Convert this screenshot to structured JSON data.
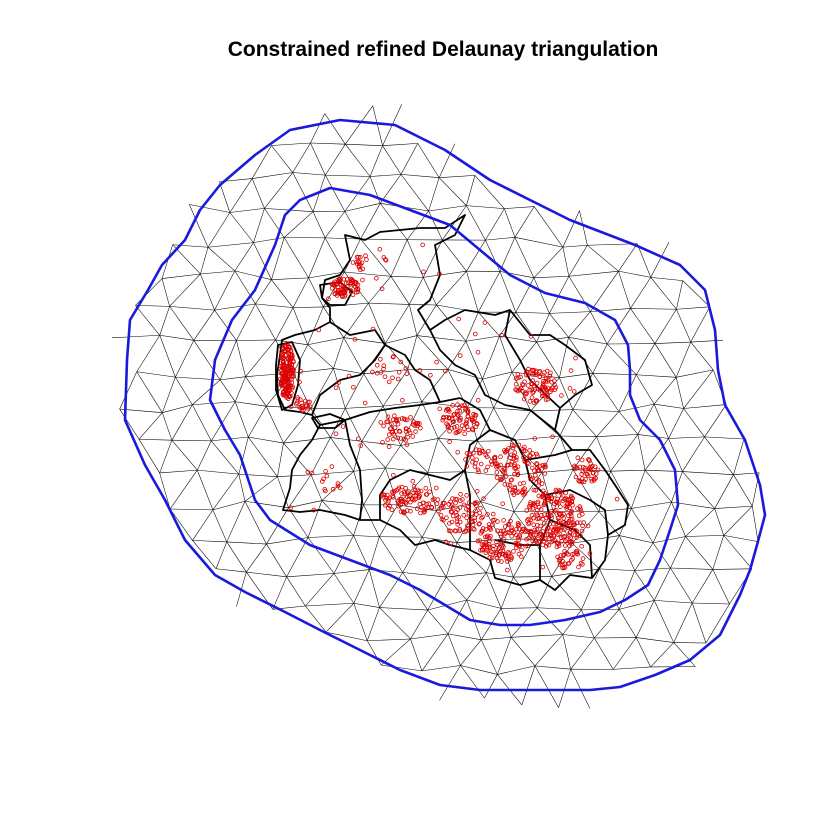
{
  "title": "Constrained refined Delaunay triangulation",
  "colors": {
    "mesh_edges": "#000000",
    "boundary": "#1a1adc",
    "region_borders": "#000000",
    "observation_points": "#dd0000"
  },
  "legend": null
}
